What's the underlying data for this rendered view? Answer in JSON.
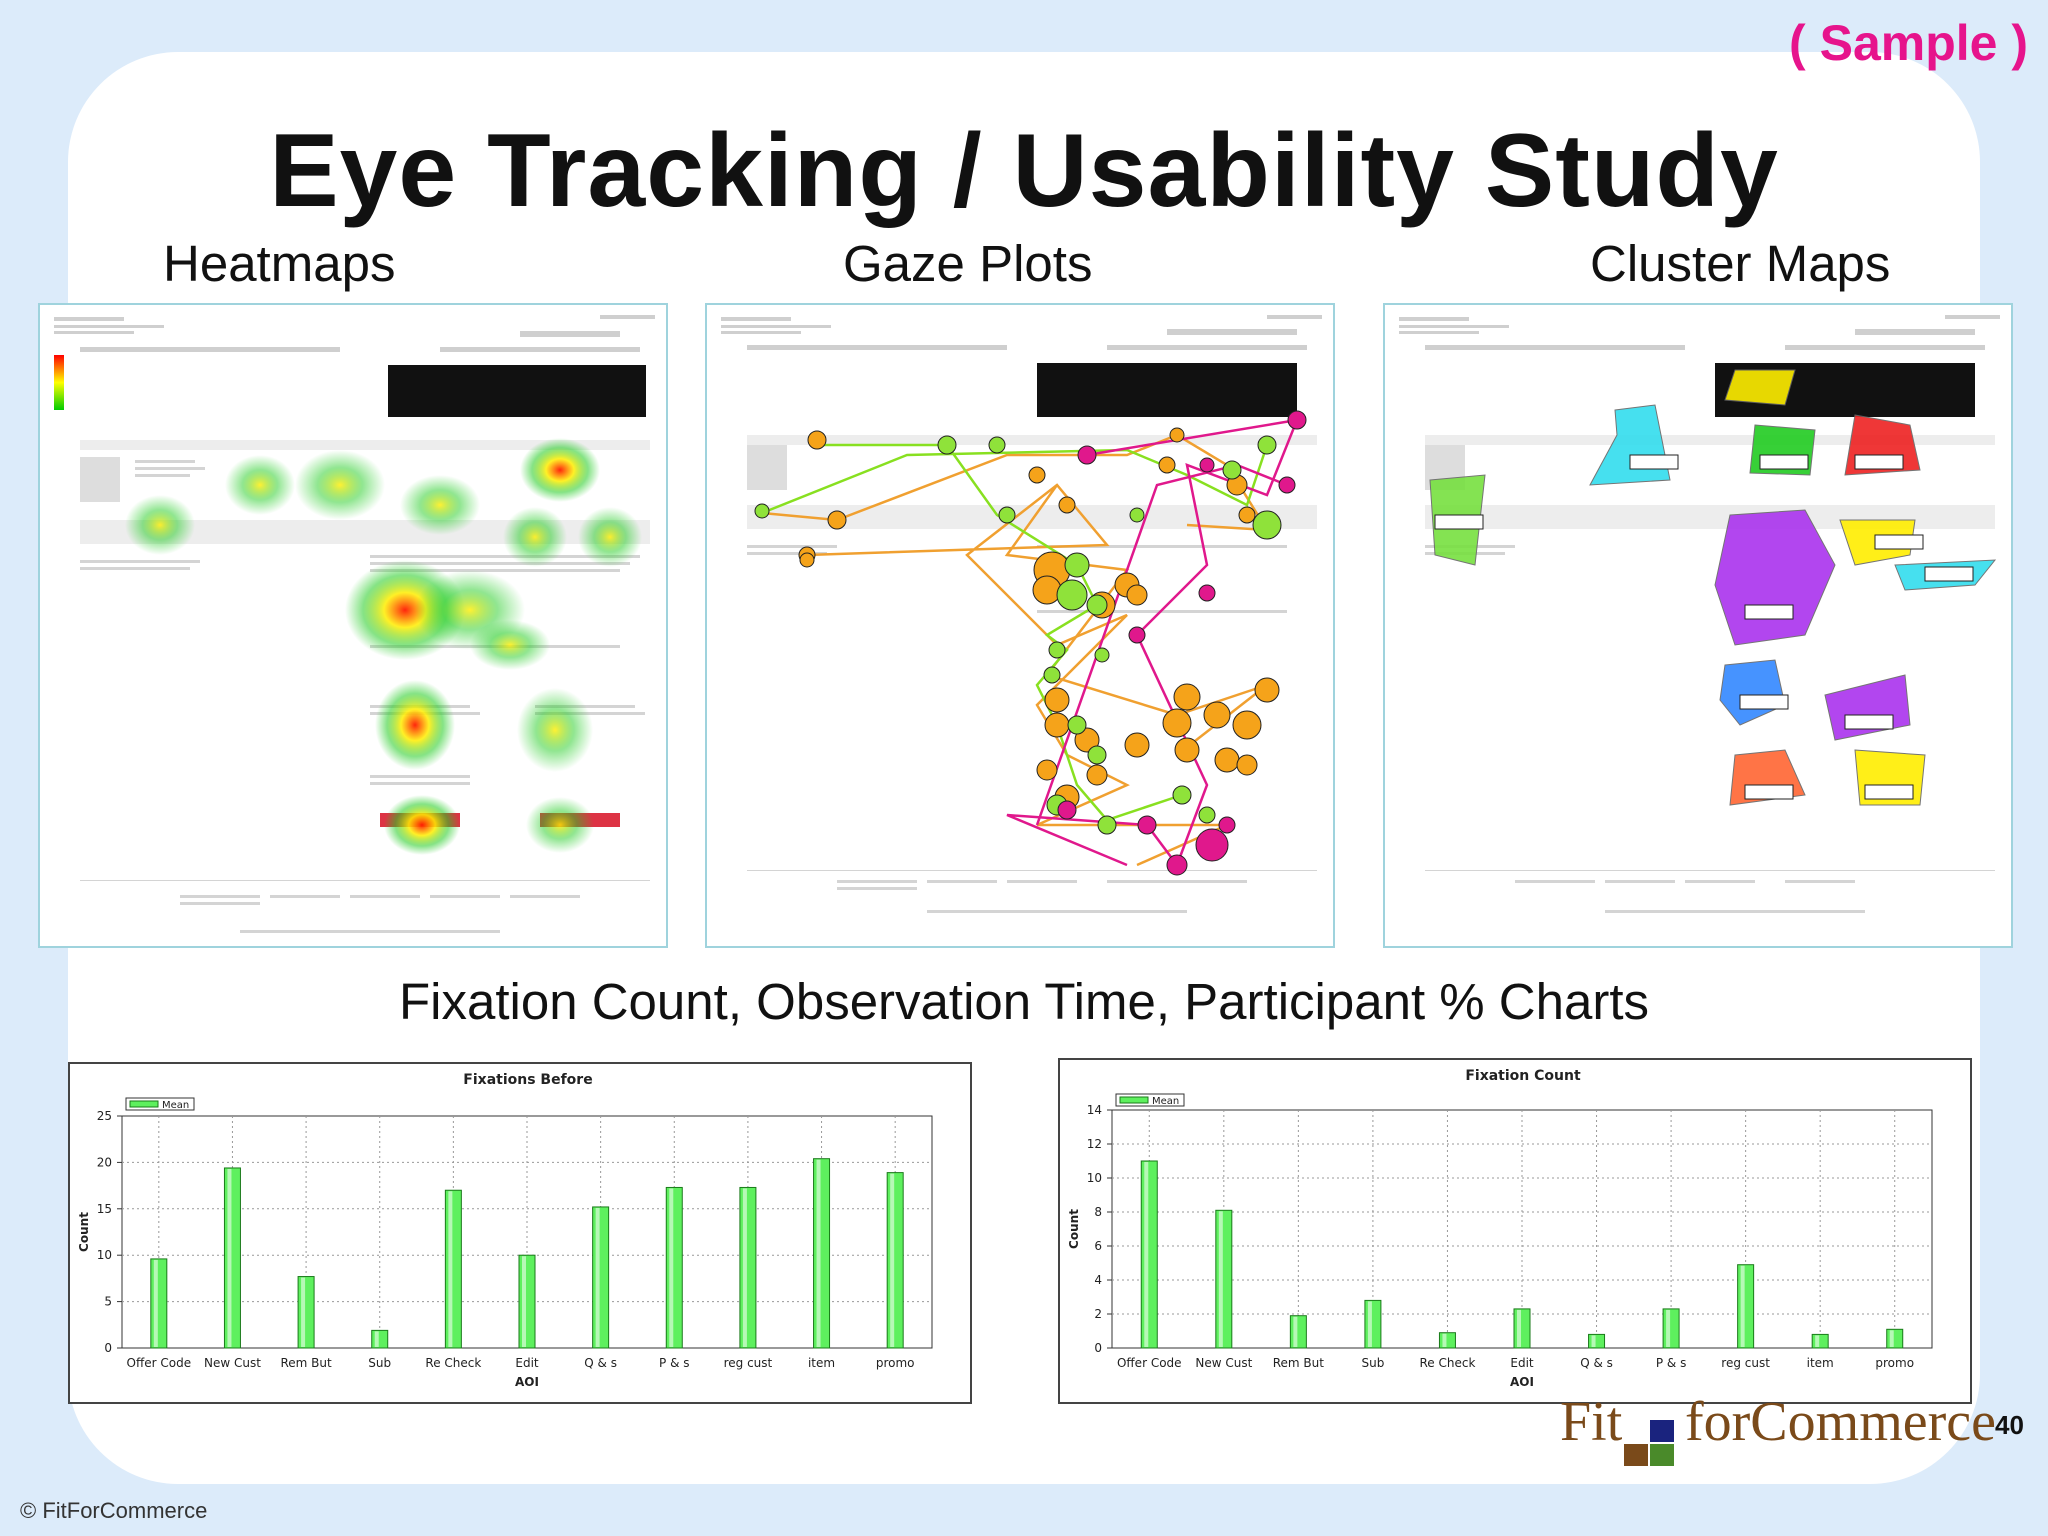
{
  "sample_tag": "( Sample )",
  "title": "Eye Tracking / Usability Study",
  "sections": {
    "heatmaps": "Heatmaps",
    "gaze_plots": "Gaze Plots",
    "cluster_maps": "Cluster Maps"
  },
  "charts_heading": "Fixation Count, Observation Time, Participant % Charts",
  "chart_data": [
    {
      "type": "bar",
      "title": "Fixations Before",
      "xlabel": "AOI",
      "ylabel": "Count",
      "legend": "Mean",
      "legend_position": "top-left",
      "grid": true,
      "ylim": [
        0,
        25
      ],
      "yticks": [
        0,
        5,
        10,
        15,
        20,
        25
      ],
      "categories": [
        "Offer Code",
        "New Cust",
        "Rem But",
        "Sub",
        "Re Check",
        "Edit",
        "Q & s",
        "P & s",
        "reg cust",
        "item",
        "promo"
      ],
      "series": [
        {
          "name": "Mean",
          "values": [
            9.6,
            19.4,
            7.7,
            1.9,
            17.0,
            10.0,
            15.2,
            17.3,
            17.3,
            20.4,
            18.9
          ]
        }
      ],
      "bar_color": "#5ef05e"
    },
    {
      "type": "bar",
      "title": "Fixation Count",
      "xlabel": "AOI",
      "ylabel": "Count",
      "legend": "Mean",
      "legend_position": "top-left",
      "grid": true,
      "ylim": [
        0,
        14
      ],
      "yticks": [
        0,
        2,
        4,
        6,
        8,
        10,
        12,
        14
      ],
      "categories": [
        "Offer Code",
        "New Cust",
        "Rem But",
        "Sub",
        "Re Check",
        "Edit",
        "Q & s",
        "P & s",
        "reg cust",
        "item",
        "promo"
      ],
      "series": [
        {
          "name": "Mean",
          "values": [
            11.0,
            8.1,
            1.9,
            2.8,
            0.9,
            2.3,
            0.8,
            2.3,
            4.9,
            0.8,
            1.1
          ]
        }
      ],
      "bar_color": "#5ef05e"
    }
  ],
  "heatmap_colors": [
    "#ff0000",
    "#ffff00",
    "#00dd00"
  ],
  "cluster_colors": [
    "#33ddee",
    "#22cc22",
    "#ee2222",
    "#aa33ee",
    "#ffee00",
    "#3388ff",
    "#ff6633"
  ],
  "logo": {
    "left": "Fit",
    "right": "forCommerce",
    "square_colors": [
      "#7a4a1a",
      "#1a237e",
      "#ffffff",
      "#4a8a2a"
    ]
  },
  "page_number": "40",
  "copyright": "© FitForCommerce"
}
